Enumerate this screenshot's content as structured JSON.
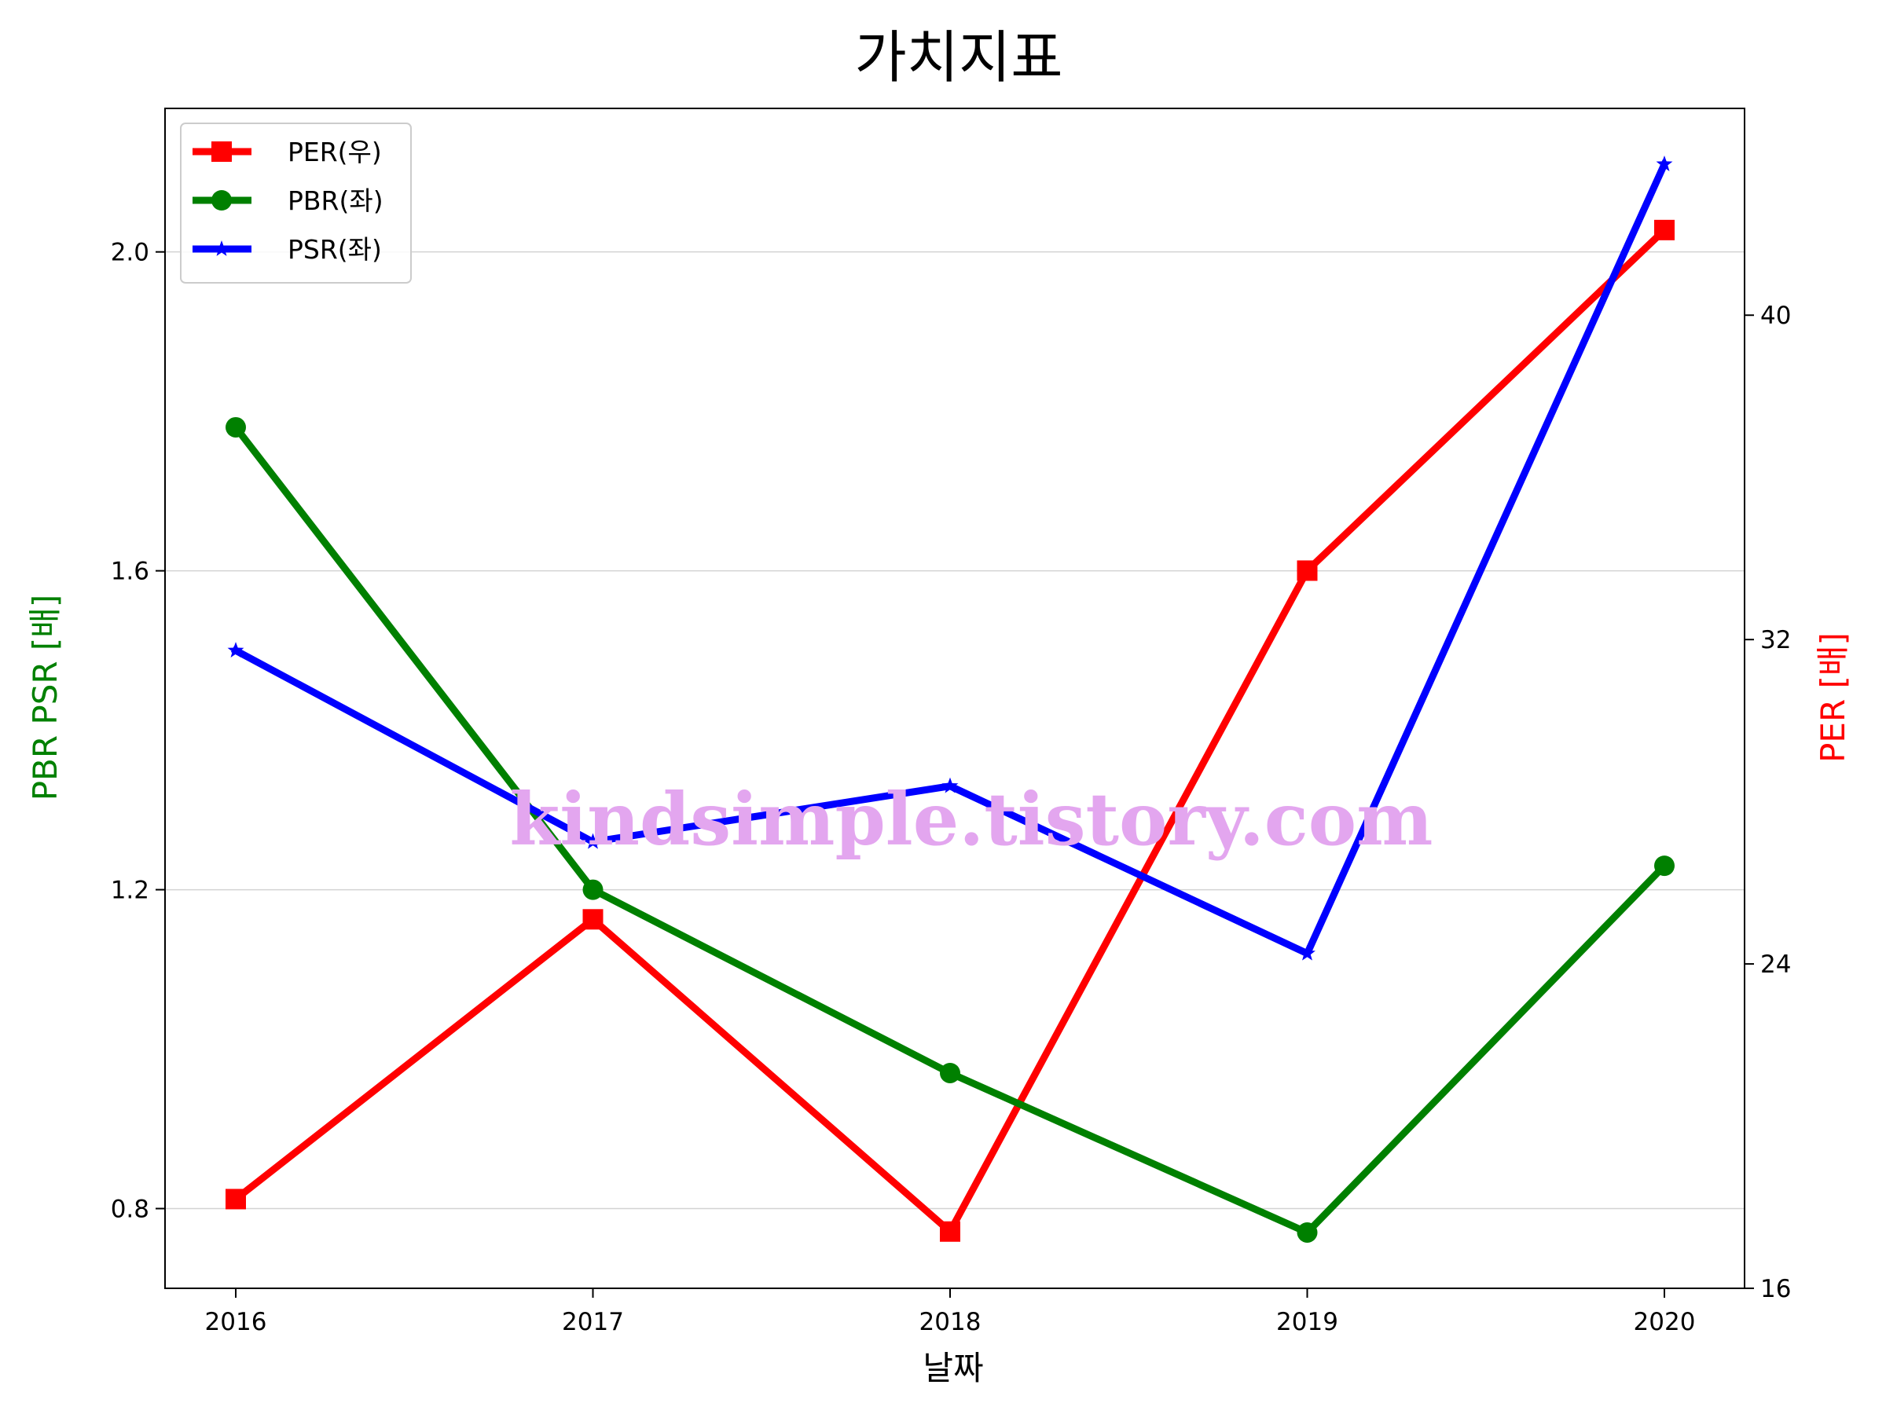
{
  "chart_data": {
    "type": "line",
    "title": "가치지표",
    "xlabel": "날짜",
    "ylabel_left": "PBR PSR [배]",
    "ylabel_right": "PER [배]",
    "categories": [
      "2016",
      "2017",
      "2018",
      "2019",
      "2020"
    ],
    "ylim_left": [
      0.7,
      2.18
    ],
    "ylim_right": [
      16,
      45.1
    ],
    "yticks_left": [
      0.8,
      1.2,
      1.6,
      2.0
    ],
    "yticks_left_labels": [
      "0.8",
      "1.2",
      "1.6",
      "2.0"
    ],
    "yticks_right": [
      16,
      24,
      32,
      40
    ],
    "yticks_right_labels": [
      "16",
      "24",
      "32",
      "40"
    ],
    "grid": "horizontal (left axis)",
    "legend_position": "top-left",
    "series": [
      {
        "name": "PER(우)",
        "axis": "right",
        "color": "#ff0000",
        "marker": "square",
        "values": [
          18.2,
          25.1,
          17.4,
          33.7,
          42.1
        ]
      },
      {
        "name": "PBR(좌)",
        "axis": "left",
        "color": "#008000",
        "marker": "circle",
        "values": [
          1.78,
          1.2,
          0.97,
          0.77,
          1.23
        ]
      },
      {
        "name": "PSR(좌)",
        "axis": "left",
        "color": "#0000ff",
        "marker": "star",
        "values": [
          1.5,
          1.26,
          1.33,
          1.12,
          2.11
        ]
      }
    ]
  },
  "watermark": "kindsimple.tistory.com",
  "colors": {
    "left_label": "#008000",
    "right_label": "#ff0000",
    "watermark": "#e3a6ef",
    "grid": "#d3d3d3"
  }
}
